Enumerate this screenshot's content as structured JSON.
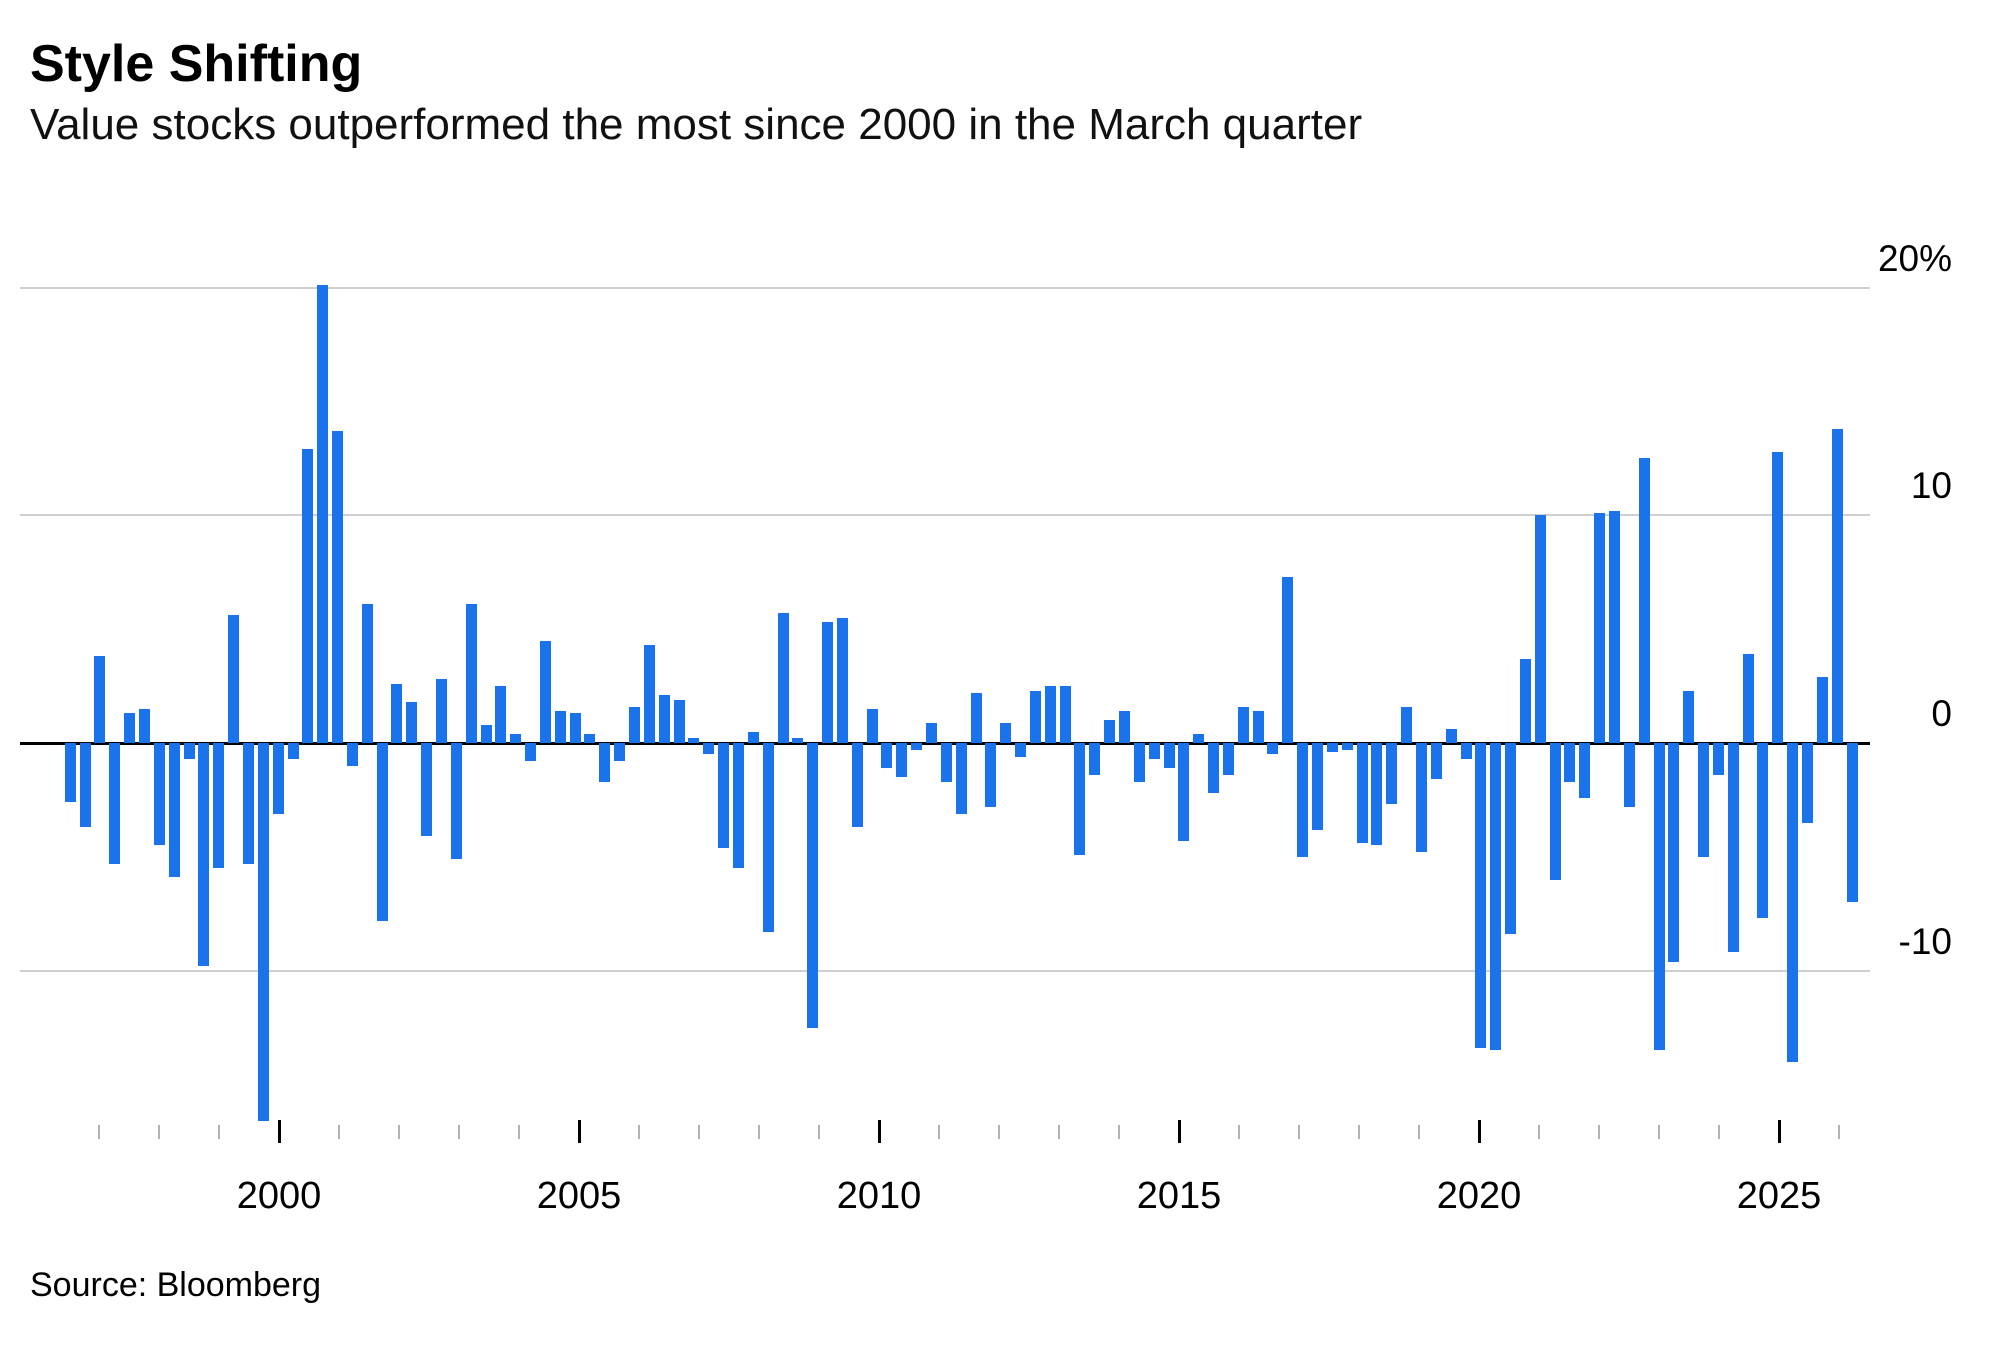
{
  "header": {
    "title": "Style Shifting",
    "subtitle": "Value stocks outperformed the most since 2000 in the March quarter"
  },
  "source_line": "Source: Bloomberg",
  "colors": {
    "bar": "#1b73eb",
    "gridline": "#cfcfcf",
    "zero_line": "#000000",
    "minor_tick": "#b3b3b3",
    "major_tick": "#000000",
    "text": "#000000"
  },
  "chart_data": {
    "type": "bar",
    "title": "Style Shifting",
    "subtitle": "Value stocks outperformed the most since 2000 in the March quarter",
    "unit": "%",
    "ylabel": "",
    "xlabel": "",
    "ylim": [
      -18,
      21
    ],
    "grid": "horizontal",
    "legend_position": "none",
    "y_axis_ticks": [
      {
        "label": "20%",
        "value": 20
      },
      {
        "label": "10",
        "value": 10
      },
      {
        "label": "0",
        "value": 0
      },
      {
        "label": "-10",
        "value": -10
      }
    ],
    "x_axis_major_ticks": [
      {
        "label": "2000",
        "year": 2000
      },
      {
        "label": "2005",
        "year": 2005
      },
      {
        "label": "2010",
        "year": 2010
      },
      {
        "label": "2015",
        "year": 2015
      },
      {
        "label": "2020",
        "year": 2020
      },
      {
        "label": "2025",
        "year": 2025
      }
    ],
    "x_minor_tick_years": {
      "start": 1997,
      "end": 2026
    },
    "categories": [
      "1996 Q2",
      "1996 Q3",
      "1996 Q4",
      "1997 Q1",
      "1997 Q2",
      "1997 Q3",
      "1997 Q4",
      "1998 Q1",
      "1998 Q2",
      "1998 Q3",
      "1998 Q4",
      "1999 Q1",
      "1999 Q2",
      "1999 Q3",
      "1999 Q4",
      "2000 Q1",
      "2000 Q2",
      "2000 Q3",
      "2000 Q4",
      "2001 Q1",
      "2001 Q2",
      "2001 Q3",
      "2001 Q4",
      "2002 Q1",
      "2002 Q2",
      "2002 Q3",
      "2002 Q4",
      "2003 Q1",
      "2003 Q2",
      "2003 Q3",
      "2003 Q4",
      "2004 Q1",
      "2004 Q2",
      "2004 Q3",
      "2004 Q4",
      "2005 Q1",
      "2005 Q2",
      "2005 Q3",
      "2005 Q4",
      "2006 Q1",
      "2006 Q2",
      "2006 Q3",
      "2006 Q4",
      "2007 Q1",
      "2007 Q2",
      "2007 Q3",
      "2007 Q4",
      "2008 Q1",
      "2008 Q2",
      "2008 Q3",
      "2008 Q4",
      "2009 Q1",
      "2009 Q2",
      "2009 Q3",
      "2009 Q4",
      "2010 Q1",
      "2010 Q2",
      "2010 Q3",
      "2010 Q4",
      "2011 Q1",
      "2011 Q2",
      "2011 Q3",
      "2011 Q4",
      "2012 Q1",
      "2012 Q2",
      "2012 Q3",
      "2012 Q4",
      "2013 Q1",
      "2013 Q2",
      "2013 Q3",
      "2013 Q4",
      "2014 Q1",
      "2014 Q2",
      "2014 Q3",
      "2014 Q4",
      "2015 Q1",
      "2015 Q2",
      "2015 Q3",
      "2015 Q4",
      "2016 Q1",
      "2016 Q2",
      "2016 Q3",
      "2016 Q4",
      "2017 Q1",
      "2017 Q2",
      "2017 Q3",
      "2017 Q4",
      "2018 Q1",
      "2018 Q2",
      "2018 Q3",
      "2018 Q4",
      "2019 Q1",
      "2019 Q2",
      "2019 Q3",
      "2019 Q4",
      "2020 Q1",
      "2020 Q2",
      "2020 Q3",
      "2020 Q4",
      "2021 Q1",
      "2021 Q2",
      "2021 Q3",
      "2021 Q4",
      "2022 Q1",
      "2022 Q2",
      "2022 Q3",
      "2022 Q4",
      "2023 Q1",
      "2023 Q2",
      "2023 Q3",
      "2023 Q4",
      "2024 Q1",
      "2024 Q2",
      "2024 Q3",
      "2024 Q4",
      "2025 Q1",
      "2025 Q2",
      "2025 Q3",
      "2025 Q4",
      "2026 Q1",
      "2026 Q2"
    ],
    "values": [
      -2.6,
      -3.7,
      3.8,
      -5.3,
      1.3,
      1.5,
      -4.5,
      -5.9,
      -0.7,
      -9.8,
      -5.5,
      5.6,
      -5.3,
      -16.6,
      -3.1,
      -0.7,
      12.9,
      20.1,
      13.7,
      -1.0,
      6.1,
      -7.8,
      2.6,
      1.8,
      -4.1,
      2.8,
      -5.1,
      6.1,
      0.8,
      2.5,
      0.4,
      -0.8,
      4.5,
      1.4,
      1.3,
      0.4,
      -1.7,
      -0.8,
      1.6,
      4.3,
      2.1,
      1.9,
      0.2,
      -0.5,
      -4.6,
      -5.5,
      0.5,
      -8.3,
      5.7,
      0.2,
      -12.5,
      5.3,
      5.5,
      -3.7,
      1.5,
      -1.1,
      -1.5,
      -0.3,
      0.9,
      -1.7,
      -3.1,
      2.2,
      -2.8,
      0.9,
      -0.6,
      2.3,
      2.5,
      2.5,
      -4.9,
      -1.4,
      1.0,
      1.4,
      -1.7,
      -0.7,
      -1.1,
      -4.3,
      0.4,
      -2.2,
      -1.4,
      1.6,
      1.4,
      -0.5,
      7.3,
      -5.0,
      -3.8,
      -0.4,
      -0.3,
      -4.4,
      -4.5,
      -2.7,
      1.6,
      -4.8,
      -1.6,
      0.6,
      -0.7,
      -13.4,
      -13.5,
      -8.4,
      3.7,
      10.0,
      -6.0,
      -1.7,
      -2.4,
      10.1,
      10.2,
      -2.8,
      12.5,
      -13.5,
      -9.6,
      2.3,
      -5.0,
      -1.4,
      -9.2,
      3.9,
      -7.7,
      12.8,
      -14.0,
      -3.5,
      2.9,
      13.8,
      -7.0
    ]
  }
}
